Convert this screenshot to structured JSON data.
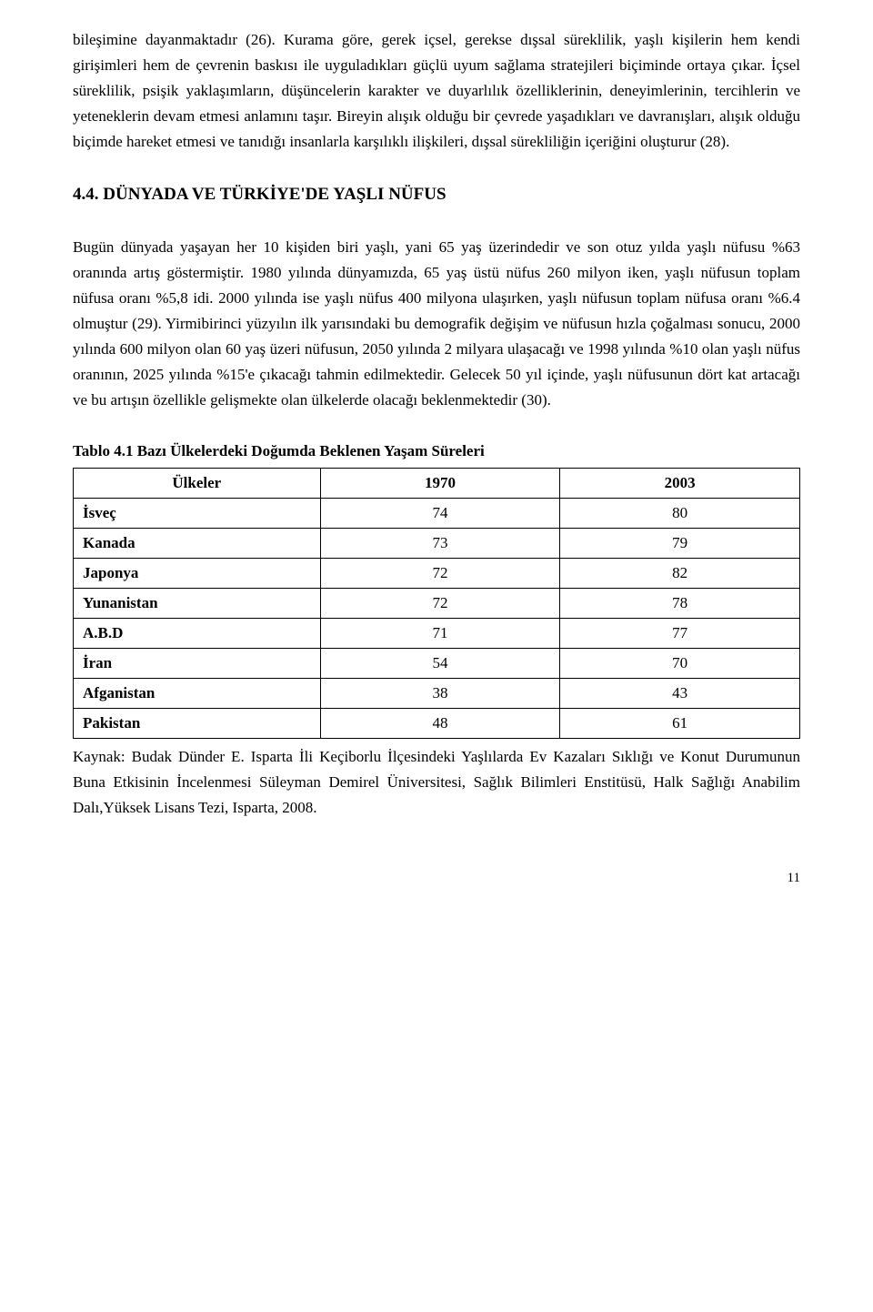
{
  "paragraph1": "bileşimine dayanmaktadır (26). Kurama göre, gerek içsel, gerekse dışsal süreklilik, yaşlı kişilerin hem kendi girişimleri hem de çevrenin baskısı ile uyguladıkları güçlü uyum sağlama stratejileri biçiminde ortaya çıkar. İçsel süreklilik, psişik yaklaşımların, düşüncelerin karakter ve duyarlılık özelliklerinin, deneyimlerinin, tercihlerin ve yeteneklerin devam etmesi anlamını taşır. Bireyin alışık olduğu bir çevrede yaşadıkları ve davranışları, alışık olduğu biçimde hareket etmesi ve tanıdığı insanlarla karşılıklı ilişkileri, dışsal sürekliliğin içeriğini oluşturur (28).",
  "heading": "4.4. DÜNYADA VE TÜRKİYE'DE YAŞLI NÜFUS",
  "paragraph2": "Bugün dünyada yaşayan her 10 kişiden biri yaşlı, yani 65 yaş üzerindedir ve son otuz yılda yaşlı nüfusu %63 oranında artış göstermiştir. 1980 yılında dünyamızda, 65 yaş üstü nüfus 260 milyon iken, yaşlı nüfusun toplam nüfusa oranı %5,8 idi. 2000 yılında ise yaşlı nüfus 400 milyona ulaşırken, yaşlı nüfusun toplam nüfusa oranı %6.4 olmuştur (29). Yirmibirinci yüzyılın ilk yarısındaki bu demografik değişim ve nüfusun hızla çoğalması sonucu, 2000 yılında 600 milyon olan 60 yaş üzeri nüfusun, 2050 yılında 2 milyara ulaşacağı ve 1998 yılında %10 olan yaşlı nüfus oranının, 2025 yılında %15'e çıkacağı tahmin edilmektedir. Gelecek 50 yıl içinde, yaşlı nüfusunun dört kat artacağı ve bu artışın özellikle gelişmekte olan ülkelerde olacağı beklenmektedir (30).",
  "table": {
    "caption": "Tablo 4.1 Bazı Ülkelerdeki Doğumda Beklenen Yaşam Süreleri",
    "headers": [
      "Ülkeler",
      "1970",
      "2003"
    ],
    "rows": [
      [
        "İsveç",
        "74",
        "80"
      ],
      [
        "Kanada",
        "73",
        "79"
      ],
      [
        "Japonya",
        "72",
        "82"
      ],
      [
        "Yunanistan",
        "72",
        "78"
      ],
      [
        "A.B.D",
        "71",
        "77"
      ],
      [
        "İran",
        "54",
        "70"
      ],
      [
        "Afganistan",
        "38",
        "43"
      ],
      [
        "Pakistan",
        "48",
        "61"
      ]
    ]
  },
  "source": "Kaynak: Budak Dünder E. Isparta İli Keçiborlu İlçesindeki Yaşlılarda Ev Kazaları Sıklığı ve Konut Durumunun Buna Etkisinin İncelenmesi Süleyman Demirel Üniversitesi, Sağlık Bilimleri Enstitüsü, Halk Sağlığı Anabilim Dalı,Yüksek Lisans Tezi, Isparta, 2008.",
  "page_number": "11"
}
